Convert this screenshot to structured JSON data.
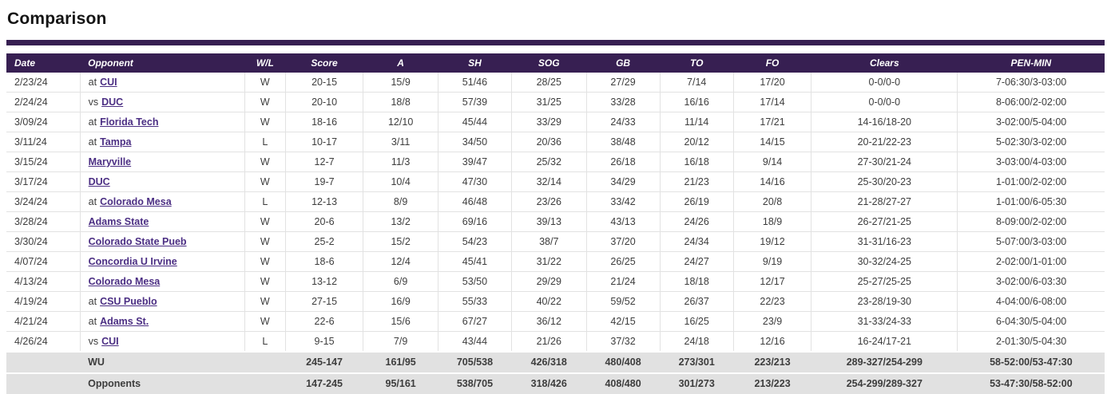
{
  "page": {
    "title": "Comparison"
  },
  "colors": {
    "accent_purple": "#371f52",
    "link_purple": "#4b2e83",
    "totals_bg": "#e1e1e1"
  },
  "table": {
    "columns": [
      {
        "key": "date",
        "label": "Date"
      },
      {
        "key": "opponent",
        "label": "Opponent"
      },
      {
        "key": "wl",
        "label": "W/L"
      },
      {
        "key": "score",
        "label": "Score"
      },
      {
        "key": "a",
        "label": "A"
      },
      {
        "key": "sh",
        "label": "SH"
      },
      {
        "key": "sog",
        "label": "SOG"
      },
      {
        "key": "gb",
        "label": "GB"
      },
      {
        "key": "to",
        "label": "TO"
      },
      {
        "key": "fo",
        "label": "FO"
      },
      {
        "key": "clears",
        "label": "Clears"
      },
      {
        "key": "pen",
        "label": "PEN-MIN"
      }
    ],
    "rows": [
      {
        "date": "2/23/24",
        "prefix": "at",
        "opponent": "CUI",
        "wl": "W",
        "score": "20-15",
        "a": "15/9",
        "sh": "51/46",
        "sog": "28/25",
        "gb": "27/29",
        "to": "7/14",
        "fo": "17/20",
        "clears": "0-0/0-0",
        "pen": "7-06:30/3-03:00"
      },
      {
        "date": "2/24/24",
        "prefix": "vs",
        "opponent": "DUC",
        "wl": "W",
        "score": "20-10",
        "a": "18/8",
        "sh": "57/39",
        "sog": "31/25",
        "gb": "33/28",
        "to": "16/16",
        "fo": "17/14",
        "clears": "0-0/0-0",
        "pen": "8-06:00/2-02:00"
      },
      {
        "date": "3/09/24",
        "prefix": "at",
        "opponent": "Florida Tech",
        "wl": "W",
        "score": "18-16",
        "a": "12/10",
        "sh": "45/44",
        "sog": "33/29",
        "gb": "24/33",
        "to": "11/14",
        "fo": "17/21",
        "clears": "14-16/18-20",
        "pen": "3-02:00/5-04:00"
      },
      {
        "date": "3/11/24",
        "prefix": "at",
        "opponent": "Tampa",
        "wl": "L",
        "score": "10-17",
        "a": "3/11",
        "sh": "34/50",
        "sog": "20/36",
        "gb": "38/48",
        "to": "20/12",
        "fo": "14/15",
        "clears": "20-21/22-23",
        "pen": "5-02:30/3-02:00"
      },
      {
        "date": "3/15/24",
        "prefix": "",
        "opponent": "Maryville",
        "wl": "W",
        "score": "12-7",
        "a": "11/3",
        "sh": "39/47",
        "sog": "25/32",
        "gb": "26/18",
        "to": "16/18",
        "fo": "9/14",
        "clears": "27-30/21-24",
        "pen": "3-03:00/4-03:00"
      },
      {
        "date": "3/17/24",
        "prefix": "",
        "opponent": "DUC",
        "wl": "W",
        "score": "19-7",
        "a": "10/4",
        "sh": "47/30",
        "sog": "32/14",
        "gb": "34/29",
        "to": "21/23",
        "fo": "14/16",
        "clears": "25-30/20-23",
        "pen": "1-01:00/2-02:00"
      },
      {
        "date": "3/24/24",
        "prefix": "at",
        "opponent": "Colorado Mesa",
        "wl": "L",
        "score": "12-13",
        "a": "8/9",
        "sh": "46/48",
        "sog": "23/26",
        "gb": "33/42",
        "to": "26/19",
        "fo": "20/8",
        "clears": "21-28/27-27",
        "pen": "1-01:00/6-05:30"
      },
      {
        "date": "3/28/24",
        "prefix": "",
        "opponent": "Adams State",
        "wl": "W",
        "score": "20-6",
        "a": "13/2",
        "sh": "69/16",
        "sog": "39/13",
        "gb": "43/13",
        "to": "24/26",
        "fo": "18/9",
        "clears": "26-27/21-25",
        "pen": "8-09:00/2-02:00"
      },
      {
        "date": "3/30/24",
        "prefix": "",
        "opponent": "Colorado State Pueb",
        "wl": "W",
        "score": "25-2",
        "a": "15/2",
        "sh": "54/23",
        "sog": "38/7",
        "gb": "37/20",
        "to": "24/34",
        "fo": "19/12",
        "clears": "31-31/16-23",
        "pen": "5-07:00/3-03:00"
      },
      {
        "date": "4/07/24",
        "prefix": "",
        "opponent": "Concordia U Irvine",
        "wl": "W",
        "score": "18-6",
        "a": "12/4",
        "sh": "45/41",
        "sog": "31/22",
        "gb": "26/25",
        "to": "24/27",
        "fo": "9/19",
        "clears": "30-32/24-25",
        "pen": "2-02:00/1-01:00"
      },
      {
        "date": "4/13/24",
        "prefix": "",
        "opponent": "Colorado Mesa",
        "wl": "W",
        "score": "13-12",
        "a": "6/9",
        "sh": "53/50",
        "sog": "29/29",
        "gb": "21/24",
        "to": "18/18",
        "fo": "12/17",
        "clears": "25-27/25-25",
        "pen": "3-02:00/6-03:30"
      },
      {
        "date": "4/19/24",
        "prefix": "at",
        "opponent": "CSU Pueblo",
        "wl": "W",
        "score": "27-15",
        "a": "16/9",
        "sh": "55/33",
        "sog": "40/22",
        "gb": "59/52",
        "to": "26/37",
        "fo": "22/23",
        "clears": "23-28/19-30",
        "pen": "4-04:00/6-08:00"
      },
      {
        "date": "4/21/24",
        "prefix": "at",
        "opponent": "Adams St.",
        "wl": "W",
        "score": "22-6",
        "a": "15/6",
        "sh": "67/27",
        "sog": "36/12",
        "gb": "42/15",
        "to": "16/25",
        "fo": "23/9",
        "clears": "31-33/24-33",
        "pen": "6-04:30/5-04:00"
      },
      {
        "date": "4/26/24",
        "prefix": "vs",
        "opponent": "CUI",
        "wl": "L",
        "score": "9-15",
        "a": "7/9",
        "sh": "43/44",
        "sog": "21/26",
        "gb": "37/32",
        "to": "24/18",
        "fo": "12/16",
        "clears": "16-24/17-21",
        "pen": "2-01:30/5-04:30"
      }
    ],
    "totals": [
      {
        "label": "WU",
        "score": "245-147",
        "a": "161/95",
        "sh": "705/538",
        "sog": "426/318",
        "gb": "480/408",
        "to": "273/301",
        "fo": "223/213",
        "clears": "289-327/254-299",
        "pen": "58-52:00/53-47:30"
      },
      {
        "label": "Opponents",
        "score": "147-245",
        "a": "95/161",
        "sh": "538/705",
        "sog": "318/426",
        "gb": "408/480",
        "to": "301/273",
        "fo": "213/223",
        "clears": "254-299/289-327",
        "pen": "53-47:30/58-52:00"
      }
    ]
  }
}
